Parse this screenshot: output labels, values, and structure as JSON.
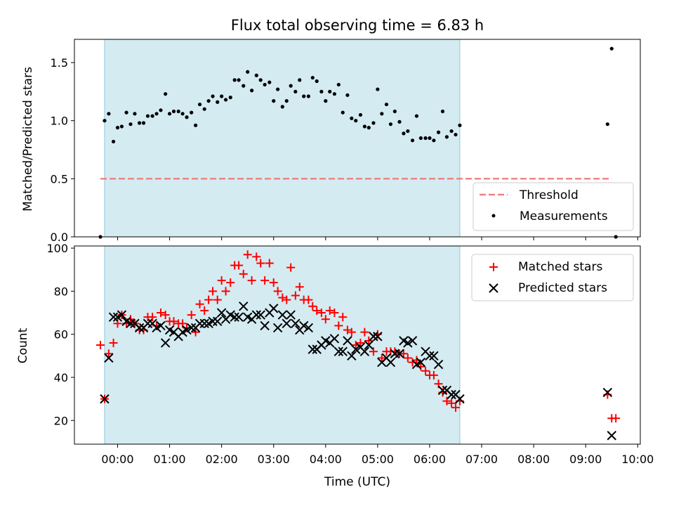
{
  "chart_data": [
    {
      "type": "scatter",
      "title": "Flux total observing time = 6.83 h",
      "xlabel": "",
      "ylabel": "Matched/Predicted stars",
      "ylim": [
        0,
        1.7
      ],
      "yticks": [
        "0.0",
        "0.5",
        "1.0",
        "1.5"
      ],
      "xlim_hours": [
        -0.83,
        10.05
      ],
      "observing_window_hours": [
        -0.25,
        6.58
      ],
      "threshold": {
        "name": "Threshold",
        "value": 0.5,
        "x_range_hours": [
          -0.33,
          9.5
        ],
        "color": "#f08080"
      },
      "legend": {
        "position": "lower right",
        "entries": [
          "Threshold",
          "Measurements"
        ]
      },
      "series": [
        {
          "name": "Measurements",
          "color": "#000000",
          "points": [
            [
              -0.33,
              0.0
            ],
            [
              -0.25,
              1.0
            ],
            [
              -0.17,
              1.06
            ],
            [
              -0.08,
              0.82
            ],
            [
              0.0,
              0.94
            ],
            [
              0.08,
              0.95
            ],
            [
              0.17,
              1.07
            ],
            [
              0.25,
              0.97
            ],
            [
              0.33,
              1.06
            ],
            [
              0.42,
              0.98
            ],
            [
              0.5,
              0.98
            ],
            [
              0.58,
              1.04
            ],
            [
              0.67,
              1.04
            ],
            [
              0.75,
              1.06
            ],
            [
              0.83,
              1.09
            ],
            [
              0.92,
              1.23
            ],
            [
              1.0,
              1.06
            ],
            [
              1.08,
              1.08
            ],
            [
              1.17,
              1.08
            ],
            [
              1.25,
              1.06
            ],
            [
              1.33,
              1.03
            ],
            [
              1.42,
              1.07
            ],
            [
              1.5,
              0.96
            ],
            [
              1.58,
              1.14
            ],
            [
              1.67,
              1.1
            ],
            [
              1.75,
              1.17
            ],
            [
              1.83,
              1.21
            ],
            [
              1.92,
              1.16
            ],
            [
              2.0,
              1.21
            ],
            [
              2.08,
              1.18
            ],
            [
              2.17,
              1.2
            ],
            [
              2.25,
              1.35
            ],
            [
              2.33,
              1.35
            ],
            [
              2.42,
              1.3
            ],
            [
              2.5,
              1.42
            ],
            [
              2.58,
              1.26
            ],
            [
              2.67,
              1.39
            ],
            [
              2.75,
              1.35
            ],
            [
              2.83,
              1.31
            ],
            [
              2.92,
              1.33
            ],
            [
              3.0,
              1.17
            ],
            [
              3.08,
              1.27
            ],
            [
              3.17,
              1.12
            ],
            [
              3.25,
              1.17
            ],
            [
              3.33,
              1.3
            ],
            [
              3.42,
              1.25
            ],
            [
              3.5,
              1.35
            ],
            [
              3.58,
              1.21
            ],
            [
              3.67,
              1.21
            ],
            [
              3.75,
              1.37
            ],
            [
              3.83,
              1.34
            ],
            [
              3.92,
              1.25
            ],
            [
              4.0,
              1.17
            ],
            [
              4.08,
              1.25
            ],
            [
              4.17,
              1.23
            ],
            [
              4.25,
              1.31
            ],
            [
              4.33,
              1.07
            ],
            [
              4.42,
              1.22
            ],
            [
              4.5,
              1.02
            ],
            [
              4.58,
              1.0
            ],
            [
              4.67,
              1.05
            ],
            [
              4.75,
              0.95
            ],
            [
              4.83,
              0.94
            ],
            [
              4.92,
              0.98
            ],
            [
              5.0,
              1.27
            ],
            [
              5.08,
              1.06
            ],
            [
              5.17,
              1.14
            ],
            [
              5.25,
              0.97
            ],
            [
              5.33,
              1.08
            ],
            [
              5.42,
              0.99
            ],
            [
              5.5,
              0.89
            ],
            [
              5.58,
              0.91
            ],
            [
              5.67,
              0.83
            ],
            [
              5.75,
              1.04
            ],
            [
              5.83,
              0.85
            ],
            [
              5.92,
              0.85
            ],
            [
              6.0,
              0.85
            ],
            [
              6.08,
              0.83
            ],
            [
              6.17,
              0.9
            ],
            [
              6.25,
              1.08
            ],
            [
              6.33,
              0.86
            ],
            [
              6.42,
              0.91
            ],
            [
              6.5,
              0.88
            ],
            [
              6.58,
              0.96
            ],
            [
              9.42,
              0.97
            ],
            [
              9.5,
              1.62
            ],
            [
              9.58,
              0.0
            ]
          ]
        }
      ]
    },
    {
      "type": "scatter",
      "title": "",
      "xlabel": "Time (UTC)",
      "ylabel": "Count",
      "ylim": [
        9,
        101
      ],
      "yticks": [
        "20",
        "40",
        "60",
        "80",
        "100"
      ],
      "xlim_hours": [
        -0.83,
        10.05
      ],
      "observing_window_hours": [
        -0.25,
        6.58
      ],
      "xticks": [
        "00:00",
        "01:00",
        "02:00",
        "03:00",
        "04:00",
        "05:00",
        "06:00",
        "07:00",
        "08:00",
        "09:00",
        "10:00"
      ],
      "legend": {
        "position": "upper right",
        "entries": [
          "Matched stars",
          "Predicted stars"
        ]
      },
      "series": [
        {
          "name": "Matched stars",
          "marker": "plus",
          "color": "#ff0000",
          "points": [
            [
              -0.33,
              55
            ],
            [
              -0.25,
              30
            ],
            [
              -0.17,
              51
            ],
            [
              -0.08,
              56
            ],
            [
              0.0,
              65
            ],
            [
              0.08,
              69
            ],
            [
              0.17,
              65
            ],
            [
              0.25,
              67
            ],
            [
              0.33,
              65
            ],
            [
              0.42,
              62
            ],
            [
              0.5,
              62
            ],
            [
              0.58,
              68
            ],
            [
              0.67,
              68
            ],
            [
              0.75,
              64
            ],
            [
              0.83,
              70
            ],
            [
              0.92,
              69
            ],
            [
              1.0,
              66
            ],
            [
              1.08,
              66
            ],
            [
              1.17,
              65
            ],
            [
              1.25,
              65
            ],
            [
              1.33,
              63
            ],
            [
              1.42,
              69
            ],
            [
              1.5,
              61
            ],
            [
              1.58,
              74
            ],
            [
              1.67,
              71
            ],
            [
              1.75,
              76
            ],
            [
              1.83,
              80
            ],
            [
              1.92,
              76
            ],
            [
              2.0,
              85
            ],
            [
              2.08,
              80
            ],
            [
              2.17,
              84
            ],
            [
              2.25,
              92
            ],
            [
              2.33,
              92
            ],
            [
              2.42,
              88
            ],
            [
              2.5,
              97
            ],
            [
              2.58,
              85
            ],
            [
              2.67,
              96
            ],
            [
              2.75,
              93
            ],
            [
              2.83,
              85
            ],
            [
              2.92,
              93
            ],
            [
              3.0,
              84
            ],
            [
              3.08,
              80
            ],
            [
              3.17,
              77
            ],
            [
              3.25,
              76
            ],
            [
              3.33,
              91
            ],
            [
              3.42,
              78
            ],
            [
              3.5,
              82
            ],
            [
              3.58,
              76
            ],
            [
              3.67,
              76
            ],
            [
              3.75,
              73
            ],
            [
              3.83,
              71
            ],
            [
              3.92,
              70
            ],
            [
              4.0,
              67
            ],
            [
              4.08,
              71
            ],
            [
              4.17,
              70
            ],
            [
              4.25,
              64
            ],
            [
              4.33,
              68
            ],
            [
              4.42,
              62
            ],
            [
              4.5,
              61
            ],
            [
              4.58,
              55
            ],
            [
              4.67,
              56
            ],
            [
              4.75,
              61
            ],
            [
              4.83,
              57
            ],
            [
              4.92,
              52
            ],
            [
              5.0,
              60
            ],
            [
              5.08,
              49
            ],
            [
              5.17,
              52
            ],
            [
              5.25,
              52
            ],
            [
              5.33,
              52
            ],
            [
              5.42,
              51
            ],
            [
              5.5,
              51
            ],
            [
              5.58,
              49
            ],
            [
              5.67,
              47
            ],
            [
              5.75,
              48
            ],
            [
              5.83,
              45
            ],
            [
              5.92,
              43
            ],
            [
              6.0,
              41
            ],
            [
              6.08,
              41
            ],
            [
              6.17,
              37
            ],
            [
              6.25,
              33
            ],
            [
              6.33,
              29
            ],
            [
              6.42,
              28
            ],
            [
              6.5,
              26
            ],
            [
              6.58,
              29
            ],
            [
              9.42,
              32
            ],
            [
              9.5,
              21
            ],
            [
              9.58,
              21
            ]
          ]
        },
        {
          "name": "Predicted stars",
          "marker": "x",
          "color": "#000000",
          "points": [
            [
              -0.25,
              30
            ],
            [
              -0.17,
              49
            ],
            [
              -0.08,
              68
            ],
            [
              0.0,
              68
            ],
            [
              0.08,
              69
            ],
            [
              0.17,
              66
            ],
            [
              0.25,
              65
            ],
            [
              0.33,
              65
            ],
            [
              0.42,
              63
            ],
            [
              0.5,
              63
            ],
            [
              0.58,
              65
            ],
            [
              0.67,
              65
            ],
            [
              0.75,
              63
            ],
            [
              0.83,
              64
            ],
            [
              0.92,
              56
            ],
            [
              1.0,
              62
            ],
            [
              1.08,
              61
            ],
            [
              1.17,
              59
            ],
            [
              1.25,
              61
            ],
            [
              1.33,
              62
            ],
            [
              1.42,
              63
            ],
            [
              1.5,
              63
            ],
            [
              1.58,
              65
            ],
            [
              1.67,
              65
            ],
            [
              1.75,
              65
            ],
            [
              1.83,
              66
            ],
            [
              1.92,
              66
            ],
            [
              2.0,
              70
            ],
            [
              2.08,
              67
            ],
            [
              2.17,
              69
            ],
            [
              2.25,
              68
            ],
            [
              2.33,
              68
            ],
            [
              2.42,
              73
            ],
            [
              2.5,
              68
            ],
            [
              2.58,
              67
            ],
            [
              2.67,
              69
            ],
            [
              2.75,
              69
            ],
            [
              2.83,
              64
            ],
            [
              2.92,
              70
            ],
            [
              3.0,
              72
            ],
            [
              3.08,
              63
            ],
            [
              3.17,
              69
            ],
            [
              3.25,
              65
            ],
            [
              3.33,
              69
            ],
            [
              3.42,
              65
            ],
            [
              3.5,
              62
            ],
            [
              3.58,
              64
            ],
            [
              3.67,
              63
            ],
            [
              3.75,
              53
            ],
            [
              3.83,
              53
            ],
            [
              3.92,
              55
            ],
            [
              4.0,
              57
            ],
            [
              4.08,
              56
            ],
            [
              4.17,
              58
            ],
            [
              4.25,
              52
            ],
            [
              4.33,
              52
            ],
            [
              4.42,
              57
            ],
            [
              4.5,
              50
            ],
            [
              4.58,
              53
            ],
            [
              4.67,
              54
            ],
            [
              4.75,
              52
            ],
            [
              4.83,
              55
            ],
            [
              4.92,
              59
            ],
            [
              5.0,
              59
            ],
            [
              5.08,
              47
            ],
            [
              5.17,
              49
            ],
            [
              5.25,
              47
            ],
            [
              5.33,
              51
            ],
            [
              5.42,
              51
            ],
            [
              5.5,
              57
            ],
            [
              5.58,
              56
            ],
            [
              5.67,
              57
            ],
            [
              5.75,
              46
            ],
            [
              5.83,
              47
            ],
            [
              5.92,
              52
            ],
            [
              6.0,
              50
            ],
            [
              6.08,
              50
            ],
            [
              6.17,
              46
            ],
            [
              6.25,
              34
            ],
            [
              6.33,
              34
            ],
            [
              6.42,
              32
            ],
            [
              6.5,
              32
            ],
            [
              6.58,
              30
            ],
            [
              9.42,
              33
            ],
            [
              9.5,
              13
            ]
          ]
        }
      ]
    }
  ]
}
